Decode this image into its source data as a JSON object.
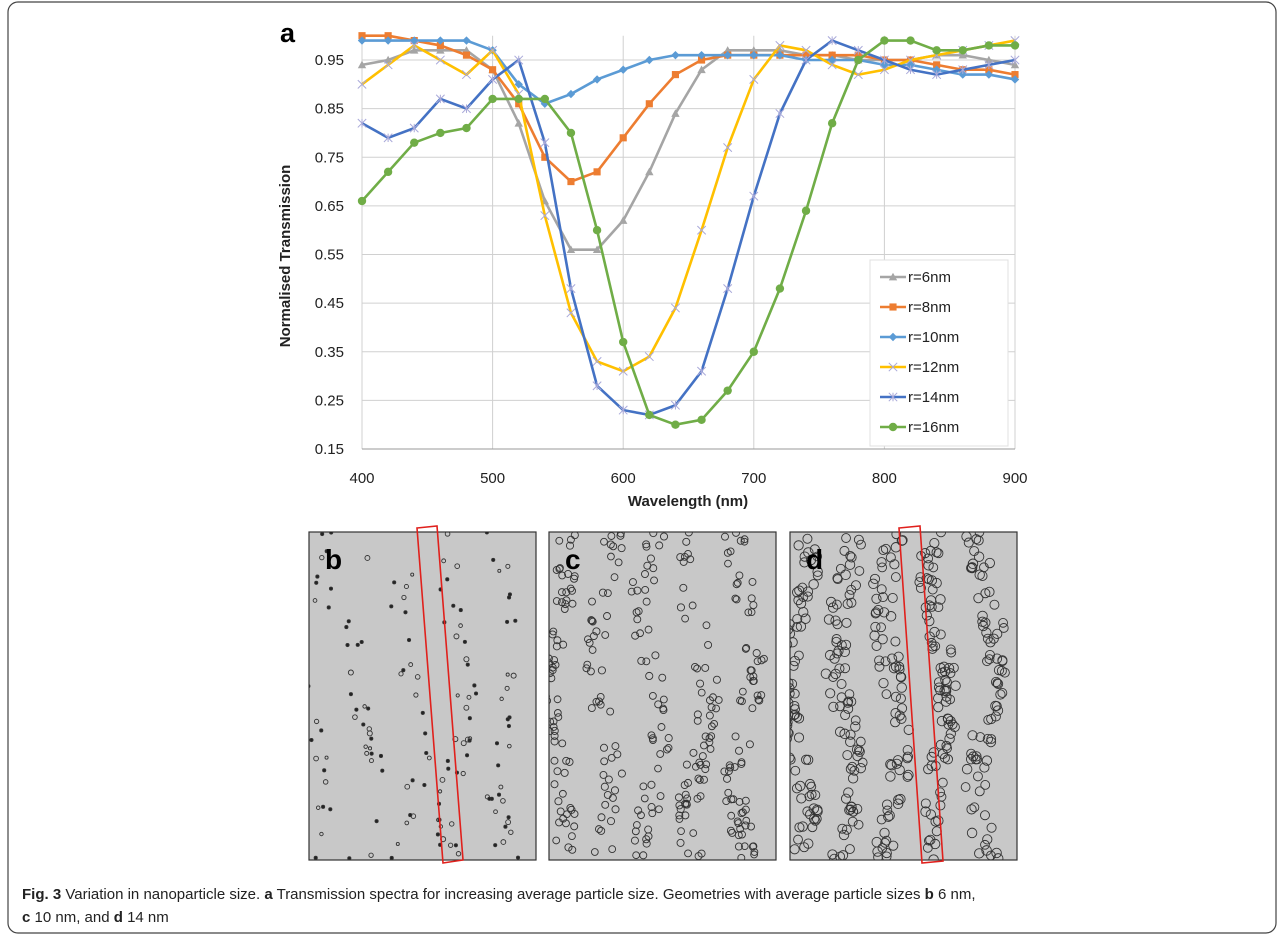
{
  "chart_data": {
    "type": "line",
    "panel_label": "a",
    "x_label": "Wavelength (nm)",
    "y_label": "Normalised Transmission",
    "x": [
      400,
      420,
      440,
      460,
      480,
      500,
      520,
      540,
      560,
      580,
      600,
      620,
      640,
      660,
      680,
      700,
      720,
      740,
      760,
      780,
      800,
      820,
      840,
      860,
      880,
      900
    ],
    "xlim": [
      400,
      900
    ],
    "xticks": [
      400,
      500,
      600,
      700,
      800,
      900
    ],
    "ylim": [
      0.15,
      1.0
    ],
    "yticks": [
      0.15,
      0.25,
      0.35,
      0.45,
      0.55,
      0.65,
      0.75,
      0.85,
      0.95
    ],
    "grid": true,
    "legend": "lower right",
    "series": [
      {
        "name": "r=6nm",
        "color": "#a5a5a5",
        "marker": "triangle",
        "values": [
          0.94,
          0.95,
          0.97,
          0.97,
          0.97,
          0.93,
          0.82,
          0.66,
          0.56,
          0.56,
          0.62,
          0.72,
          0.84,
          0.93,
          0.97,
          0.97,
          0.97,
          0.96,
          0.96,
          0.95,
          0.95,
          0.95,
          0.96,
          0.96,
          0.95,
          0.94
        ]
      },
      {
        "name": "r=8nm",
        "color": "#ed7d31",
        "marker": "square",
        "values": [
          1.0,
          1.0,
          0.99,
          0.98,
          0.96,
          0.93,
          0.86,
          0.75,
          0.7,
          0.72,
          0.79,
          0.86,
          0.92,
          0.95,
          0.96,
          0.96,
          0.96,
          0.96,
          0.96,
          0.96,
          0.95,
          0.95,
          0.94,
          0.93,
          0.93,
          0.92
        ]
      },
      {
        "name": "r=10nm",
        "color": "#5b9bd5",
        "marker": "diamond",
        "values": [
          0.99,
          0.99,
          0.99,
          0.99,
          0.99,
          0.97,
          0.9,
          0.86,
          0.88,
          0.91,
          0.93,
          0.95,
          0.96,
          0.96,
          0.96,
          0.96,
          0.96,
          0.95,
          0.95,
          0.95,
          0.94,
          0.94,
          0.93,
          0.92,
          0.92,
          0.91
        ]
      },
      {
        "name": "r=12nm",
        "color": "#ffc000",
        "marker": "x",
        "values": [
          0.9,
          0.94,
          0.98,
          0.95,
          0.92,
          0.97,
          0.88,
          0.63,
          0.43,
          0.33,
          0.31,
          0.34,
          0.44,
          0.6,
          0.77,
          0.91,
          0.98,
          0.97,
          0.94,
          0.92,
          0.93,
          0.95,
          0.96,
          0.97,
          0.98,
          0.99
        ]
      },
      {
        "name": "r=14nm",
        "color": "#4472c4",
        "marker": "star",
        "values": [
          0.82,
          0.79,
          0.81,
          0.87,
          0.85,
          0.91,
          0.95,
          0.78,
          0.48,
          0.28,
          0.23,
          0.22,
          0.24,
          0.31,
          0.48,
          0.67,
          0.84,
          0.95,
          0.99,
          0.97,
          0.95,
          0.93,
          0.92,
          0.93,
          0.94,
          0.95
        ]
      },
      {
        "name": "r=16nm",
        "color": "#70ad47",
        "marker": "circle",
        "values": [
          0.66,
          0.72,
          0.78,
          0.8,
          0.81,
          0.87,
          0.87,
          0.87,
          0.8,
          0.6,
          0.37,
          0.22,
          0.2,
          0.21,
          0.27,
          0.35,
          0.48,
          0.64,
          0.82,
          0.95,
          0.99,
          0.99,
          0.97,
          0.97,
          0.98,
          0.98
        ]
      }
    ]
  },
  "panels": [
    {
      "label": "b"
    },
    {
      "label": "c"
    },
    {
      "label": "d"
    }
  ],
  "caption": {
    "lines": [
      [
        {
          "text": "Fig. 3",
          "bold": true
        },
        {
          "text": " Variation in nanoparticle size. ",
          "bold": false
        },
        {
          "text": "a",
          "bold": true
        },
        {
          "text": " Transmission spectra for increasing average particle size. Geometries with average particle sizes ",
          "bold": false
        },
        {
          "text": "b",
          "bold": true
        },
        {
          "text": " 6 nm,",
          "bold": false
        }
      ],
      [
        {
          "text": "c",
          "bold": true
        },
        {
          "text": " 10 nm, and ",
          "bold": false
        },
        {
          "text": "d",
          "bold": true
        },
        {
          "text": " 14 nm",
          "bold": false
        }
      ]
    ]
  }
}
